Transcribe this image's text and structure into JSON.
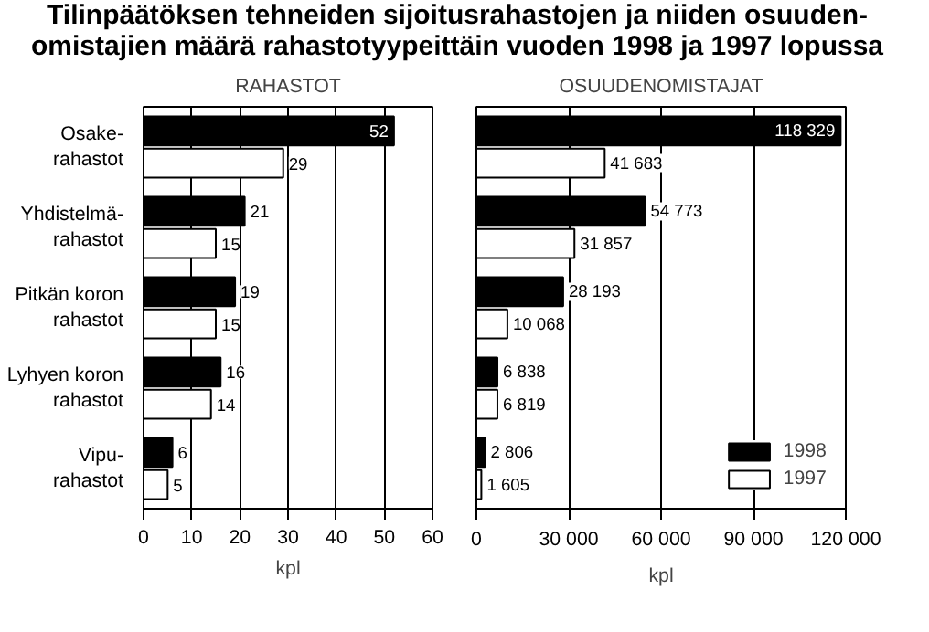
{
  "chart_data": [
    {
      "type": "bar",
      "orientation": "horizontal",
      "title": "Tilinpäätöksen tehneiden sijoitusrahastojen ja niiden osuuden-\nomistajien määrä rahastotyypeittäin vuoden 1998 ja 1997 lopussa",
      "subtitle": "RAHASTOT",
      "xlabel": "kpl",
      "categories": [
        "Osake-\nrahastot",
        "Yhdistelmä-\nrahastot",
        "Pitkän koron\nrahastot",
        "Lyhyen koron\nrahastot",
        "Vipu-\nrahastot"
      ],
      "series": [
        {
          "color": "#000000",
          "values": [
            52,
            21,
            19,
            16,
            6
          ]
        },
        {
          "color": "#ffffff",
          "values": [
            29,
            15,
            15,
            14,
            5
          ]
        }
      ],
      "xlim": [
        0,
        60
      ],
      "xticks": [
        0,
        10,
        20,
        30,
        40,
        50,
        60
      ],
      "grid": "x",
      "data_labels": true
    },
    {
      "type": "bar",
      "orientation": "horizontal",
      "subtitle": "OSUUDENOMISTAJAT",
      "xlabel": "kpl",
      "categories": [
        null,
        null,
        null,
        null,
        null
      ],
      "series": [
        {
          "name": "1998",
          "color": "#000000",
          "values": [
            118329,
            54773,
            28193,
            6838,
            2806
          ],
          "value_labels": [
            "118 329",
            "54 773",
            "28 193",
            "6 838",
            "2 806"
          ]
        },
        {
          "name": "1997",
          "color": "#ffffff",
          "values": [
            41683,
            31857,
            10068,
            6819,
            1605
          ],
          "value_labels": [
            "41 683",
            "31 857",
            "10 068",
            "6 819",
            "1 605"
          ]
        }
      ],
      "xlim": [
        0,
        120000
      ],
      "xticks": [
        0,
        {
          "value": 30000,
          "label": "30 000"
        },
        {
          "value": 60000,
          "label": "60 000"
        },
        {
          "value": 90000,
          "label": "90 000"
        },
        {
          "value": 120000,
          "label": "120 000"
        }
      ],
      "grid": "x",
      "tick_labels": "x",
      "legend": "bottom right"
    }
  ]
}
